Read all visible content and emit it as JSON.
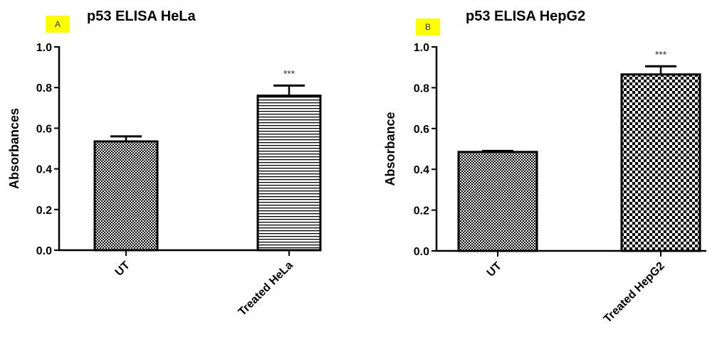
{
  "chart_data": [
    {
      "type": "bar",
      "panel_label": "A",
      "title": "p53 ELISA HeLa",
      "xlabel": "",
      "ylabel": "Absorbances",
      "ylim": [
        0,
        1.0
      ],
      "yticks": [
        "0.0",
        "0.2",
        "0.4",
        "0.6",
        "0.8",
        "1.0"
      ],
      "categories": [
        "UT",
        "Treated HeLa"
      ],
      "values": [
        0.535,
        0.76
      ],
      "errors": [
        0.025,
        0.05
      ],
      "significance": [
        "",
        "***"
      ],
      "patterns": [
        "checker-fine",
        "horizontal-lines"
      ]
    },
    {
      "type": "bar",
      "panel_label": "B",
      "title": "p53 ELISA HepG2",
      "xlabel": "",
      "ylabel": "Absorbance",
      "ylim": [
        0,
        1.0
      ],
      "yticks": [
        "0.0",
        "0.2",
        "0.4",
        "0.6",
        "0.8",
        "1.0"
      ],
      "categories": [
        "UT",
        "Treated HepG2"
      ],
      "values": [
        0.485,
        0.865
      ],
      "errors": [
        0.005,
        0.04
      ],
      "significance": [
        "",
        "***"
      ],
      "patterns": [
        "checker-fine",
        "checker-coarse"
      ]
    }
  ]
}
